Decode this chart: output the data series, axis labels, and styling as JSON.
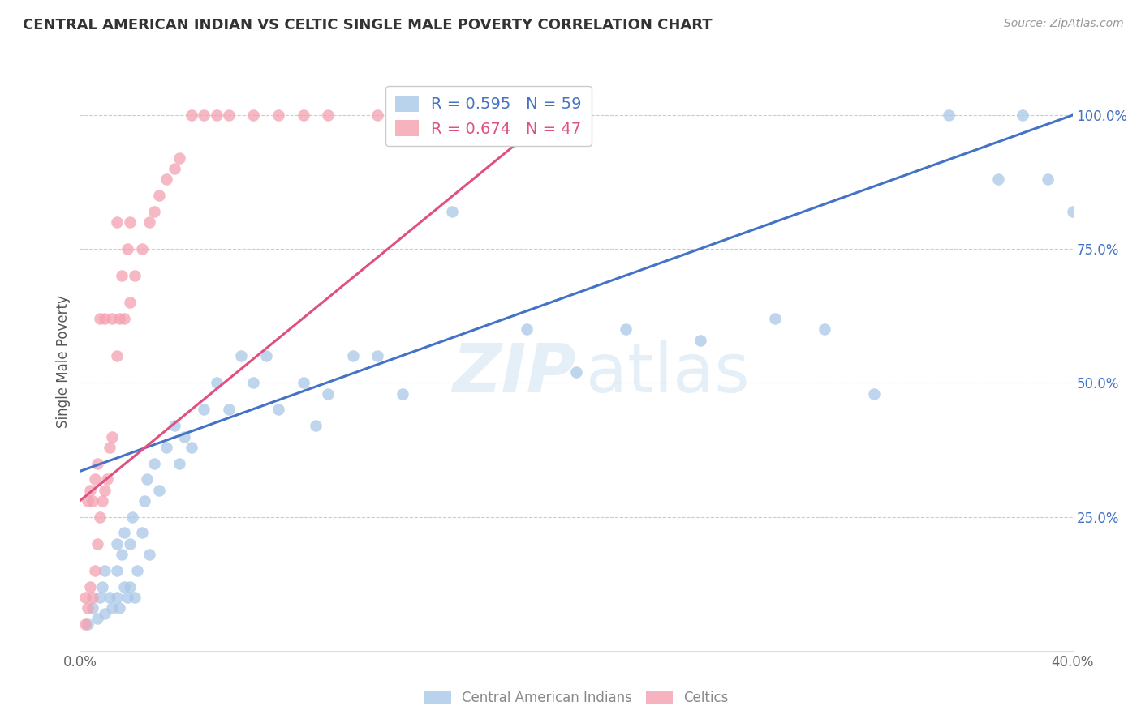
{
  "title": "CENTRAL AMERICAN INDIAN VS CELTIC SINGLE MALE POVERTY CORRELATION CHART",
  "source": "Source: ZipAtlas.com",
  "ylabel": "Single Male Poverty",
  "xlim": [
    0,
    0.4
  ],
  "ylim": [
    0,
    1.08
  ],
  "xtick_positions": [
    0.0,
    0.1,
    0.2,
    0.3,
    0.4
  ],
  "xtick_labels": [
    "0.0%",
    "",
    "",
    "",
    "40.0%"
  ],
  "ytick_labels_right": [
    "25.0%",
    "50.0%",
    "75.0%",
    "100.0%"
  ],
  "ytick_vals": [
    0.25,
    0.5,
    0.75,
    1.0
  ],
  "blue_R": 0.595,
  "blue_N": 59,
  "pink_R": 0.674,
  "pink_N": 47,
  "blue_color": "#a8c8e8",
  "pink_color": "#f4a0b0",
  "blue_line_color": "#4472c4",
  "pink_line_color": "#e05080",
  "blue_scatter_x": [
    0.003,
    0.005,
    0.007,
    0.008,
    0.009,
    0.01,
    0.01,
    0.012,
    0.013,
    0.015,
    0.015,
    0.015,
    0.016,
    0.017,
    0.018,
    0.018,
    0.019,
    0.02,
    0.02,
    0.021,
    0.022,
    0.023,
    0.025,
    0.026,
    0.027,
    0.028,
    0.03,
    0.032,
    0.035,
    0.038,
    0.04,
    0.042,
    0.045,
    0.05,
    0.055,
    0.06,
    0.065,
    0.07,
    0.075,
    0.08,
    0.09,
    0.095,
    0.1,
    0.11,
    0.12,
    0.13,
    0.15,
    0.18,
    0.2,
    0.22,
    0.25,
    0.28,
    0.3,
    0.32,
    0.35,
    0.37,
    0.38,
    0.39,
    0.4
  ],
  "blue_scatter_y": [
    0.05,
    0.08,
    0.06,
    0.1,
    0.12,
    0.07,
    0.15,
    0.1,
    0.08,
    0.1,
    0.15,
    0.2,
    0.08,
    0.18,
    0.12,
    0.22,
    0.1,
    0.12,
    0.2,
    0.25,
    0.1,
    0.15,
    0.22,
    0.28,
    0.32,
    0.18,
    0.35,
    0.3,
    0.38,
    0.42,
    0.35,
    0.4,
    0.38,
    0.45,
    0.5,
    0.45,
    0.55,
    0.5,
    0.55,
    0.45,
    0.5,
    0.42,
    0.48,
    0.55,
    0.55,
    0.48,
    0.82,
    0.6,
    0.52,
    0.6,
    0.58,
    0.62,
    0.6,
    0.48,
    1.0,
    0.88,
    1.0,
    0.88,
    0.82
  ],
  "pink_scatter_x": [
    0.002,
    0.002,
    0.003,
    0.003,
    0.004,
    0.004,
    0.005,
    0.005,
    0.006,
    0.006,
    0.007,
    0.007,
    0.008,
    0.008,
    0.009,
    0.01,
    0.01,
    0.011,
    0.012,
    0.013,
    0.013,
    0.015,
    0.015,
    0.016,
    0.017,
    0.018,
    0.019,
    0.02,
    0.02,
    0.022,
    0.025,
    0.028,
    0.03,
    0.032,
    0.035,
    0.038,
    0.04,
    0.045,
    0.05,
    0.055,
    0.06,
    0.07,
    0.08,
    0.09,
    0.1,
    0.12,
    0.15
  ],
  "pink_scatter_y": [
    0.05,
    0.1,
    0.08,
    0.28,
    0.12,
    0.3,
    0.1,
    0.28,
    0.15,
    0.32,
    0.2,
    0.35,
    0.25,
    0.62,
    0.28,
    0.3,
    0.62,
    0.32,
    0.38,
    0.4,
    0.62,
    0.55,
    0.8,
    0.62,
    0.7,
    0.62,
    0.75,
    0.65,
    0.8,
    0.7,
    0.75,
    0.8,
    0.82,
    0.85,
    0.88,
    0.9,
    0.92,
    1.0,
    1.0,
    1.0,
    1.0,
    1.0,
    1.0,
    1.0,
    1.0,
    1.0,
    1.0
  ],
  "blue_line": [
    0.0,
    0.335,
    0.4,
    1.0
  ],
  "pink_line": [
    0.0,
    0.28,
    0.19,
    1.0
  ]
}
